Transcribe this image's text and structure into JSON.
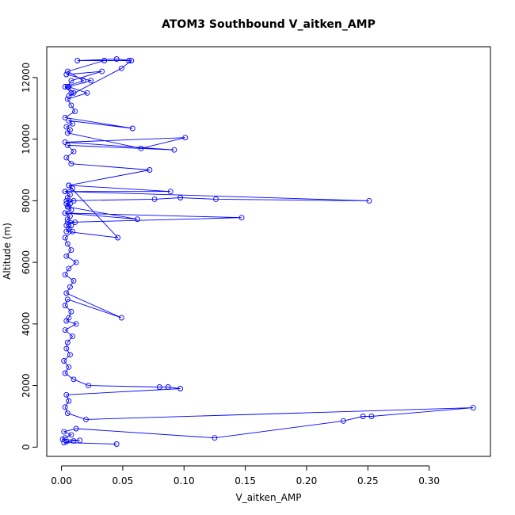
{
  "chart_data": {
    "type": "line",
    "title": "ATOM3 Southbound V_aitken_AMP",
    "xlabel": "V_aitken_AMP",
    "ylabel": "Altitude (m)",
    "xlim": [
      -0.012,
      0.35
    ],
    "ylim": [
      -300,
      13000
    ],
    "xticks": [
      0.0,
      0.05,
      0.1,
      0.15,
      0.2,
      0.25,
      0.3
    ],
    "xtick_labels": [
      "0.00",
      "0.05",
      "0.10",
      "0.15",
      "0.20",
      "0.25",
      "0.30"
    ],
    "yticks": [
      0,
      2000,
      4000,
      6000,
      8000,
      10000,
      12000
    ],
    "ytick_labels": [
      "0",
      "2000",
      "4000",
      "6000",
      "8000",
      "10000",
      "12000"
    ],
    "marker": "open-circle",
    "grid": false,
    "color": "#0000ff",
    "series": [
      {
        "x": [
          0.045,
          0.002,
          0.01,
          0.004,
          0.015,
          0.001,
          0.003,
          0.008,
          0.002,
          0.012,
          0.125,
          0.23,
          0.246,
          0.253,
          0.336,
          0.02,
          0.005,
          0.003,
          0.006,
          0.004,
          0.097,
          0.087,
          0.08,
          0.022,
          0.01,
          0.003,
          0.006,
          0.002,
          0.007,
          0.004,
          0.005,
          0.009,
          0.003,
          0.012,
          0.004,
          0.006,
          0.008,
          0.003,
          0.005,
          0.049,
          0.004,
          0.007,
          0.01,
          0.003,
          0.006,
          0.012,
          0.004,
          0.008,
          0.005,
          0.003,
          0.009,
          0.006,
          0.004,
          0.011,
          0.005,
          0.007,
          0.003,
          0.008,
          0.006,
          0.004,
          0.01,
          0.005,
          0.007,
          0.003,
          0.009,
          0.006,
          0.046,
          0.004,
          0.008,
          0.005,
          0.147,
          0.003,
          0.062,
          0.005,
          0.007,
          0.004,
          0.076,
          0.097,
          0.126,
          0.251,
          0.003,
          0.089,
          0.006,
          0.072,
          0.008,
          0.004,
          0.01,
          0.005,
          0.092,
          0.003,
          0.101,
          0.065,
          0.005,
          0.007,
          0.004,
          0.009,
          0.006,
          0.058,
          0.003,
          0.011,
          0.008,
          0.005,
          0.021,
          0.006,
          0.024,
          0.004,
          0.033,
          0.008,
          0.005,
          0.01,
          0.006,
          0.049,
          0.057,
          0.045,
          0.013,
          0.055,
          0.035,
          0.005,
          0.018,
          0.003,
          0.008
        ],
        "y": [
          100,
          150,
          200,
          180,
          220,
          250,
          300,
          400,
          500,
          600,
          300,
          850,
          1000,
          1000,
          1280,
          900,
          1100,
          1300,
          1500,
          1700,
          1900,
          1950,
          1950,
          2000,
          2200,
          2400,
          2600,
          2800,
          3000,
          3200,
          3400,
          3600,
          3800,
          4000,
          4100,
          4200,
          4400,
          4600,
          4800,
          4200,
          5000,
          5200,
          5400,
          5600,
          5800,
          6000,
          6200,
          6400,
          6600,
          6800,
          7000,
          7100,
          7200,
          7300,
          7400,
          7500,
          7600,
          7700,
          7800,
          7900,
          8000,
          8100,
          8200,
          8300,
          8400,
          8500,
          6800,
          7000,
          7200,
          7300,
          7450,
          7600,
          7400,
          7800,
          7900,
          8000,
          8050,
          8100,
          8050,
          8000,
          8300,
          8300,
          8500,
          9000,
          9200,
          9400,
          9600,
          9800,
          9650,
          9900,
          10050,
          9700,
          10200,
          10300,
          10400,
          10500,
          10600,
          10350,
          10700,
          10900,
          11100,
          11300,
          11500,
          11700,
          11900,
          12100,
          12200,
          11900,
          11700,
          11500,
          11400,
          12300,
          12550,
          12600,
          12550,
          12550,
          12550,
          12200,
          11900,
          11700,
          11500
        ]
      }
    ]
  }
}
